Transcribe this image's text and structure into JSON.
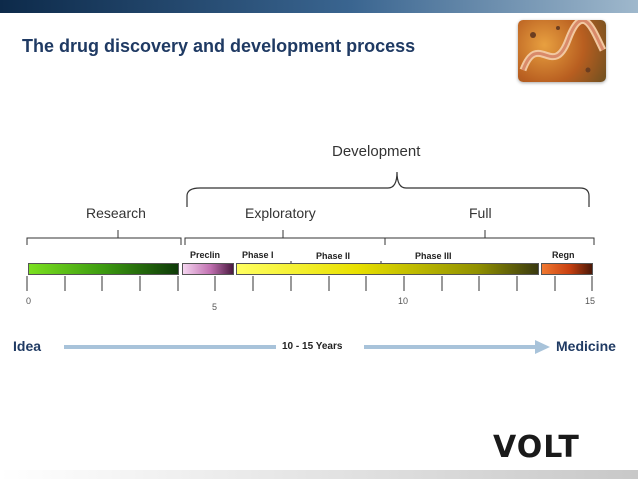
{
  "title": "The drug discovery and development process",
  "phases": {
    "development": "Development",
    "research": "Research",
    "exploratory": "Exploratory",
    "full": "Full"
  },
  "stages": {
    "preclin": "Preclin",
    "phase1": "Phase I",
    "phase2": "Phase II",
    "phase3": "Phase III",
    "regn": "Regn"
  },
  "axis": {
    "t0": "0",
    "t5": "5",
    "t10": "10",
    "t15": "15"
  },
  "timeline": {
    "start": "Idea",
    "duration": "10 - 15  Years",
    "end": "Medicine"
  },
  "brand": "VOLT",
  "colors": {
    "title": "#1f3a63",
    "arrow": "#a8c3da"
  }
}
